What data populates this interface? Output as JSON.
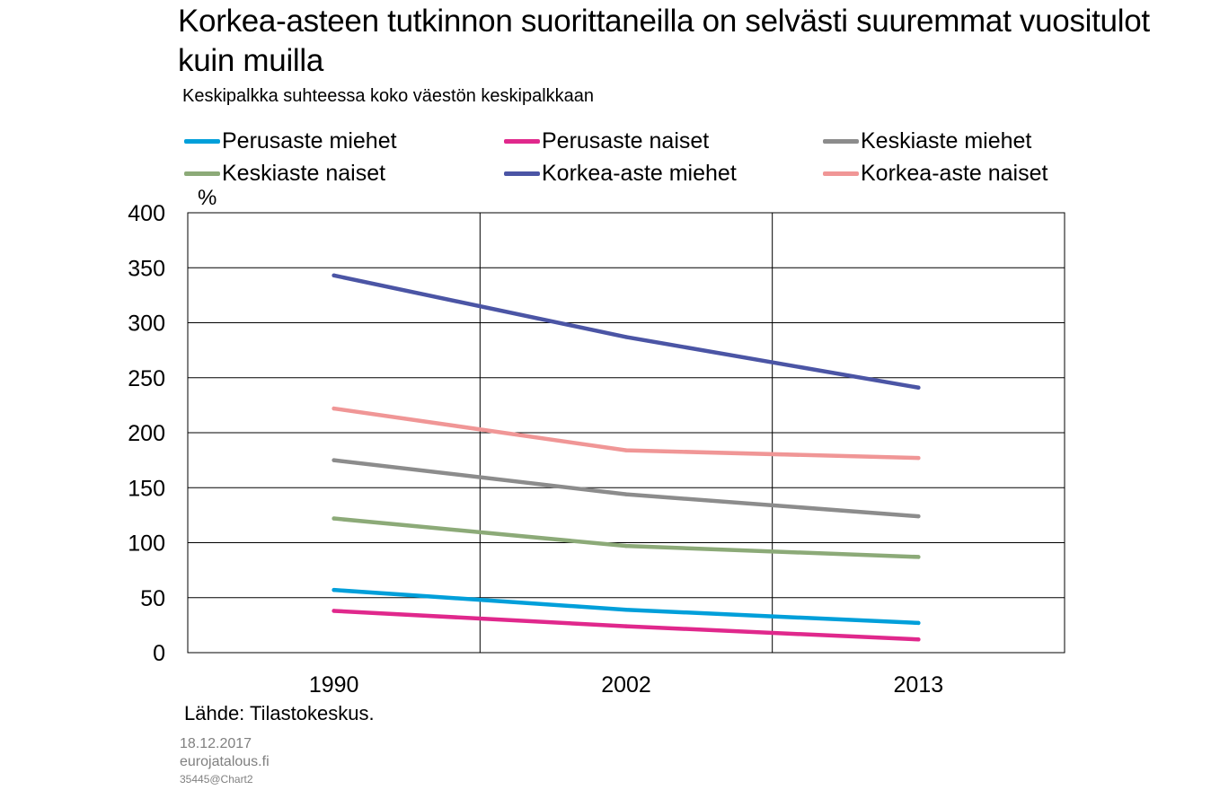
{
  "header": {
    "title": "Korkea-asteen tutkinnon suorittaneilla on selvästi suuremmat vuositulot kuin muilla",
    "subtitle": "Keskipalkka suhteessa koko väestön keskipalkkaan"
  },
  "legend": [
    {
      "label": "Perusaste miehet",
      "color": "#009FDA"
    },
    {
      "label": "Perusaste naiset",
      "color": "#E0288C"
    },
    {
      "label": "Keskiaste miehet",
      "color": "#8C8C8C"
    },
    {
      "label": "Keskiaste naiset",
      "color": "#8CAA78"
    },
    {
      "label": "Korkea-aste miehet",
      "color": "#4B55A5"
    },
    {
      "label": "Korkea-aste naiset",
      "color": "#F09696"
    }
  ],
  "unit_label": "%",
  "source": "Lähde: Tilastokeskus.",
  "footer": {
    "date": "18.12.2017",
    "site": "eurojatalous.fi",
    "id": "35445@Chart2"
  },
  "chart_data": {
    "type": "line",
    "title": "Korkea-asteen tutkinnon suorittaneilla on selvästi suuremmat vuositulot kuin muilla",
    "subtitle": "Keskipalkka suhteessa koko väestön keskipalkkaan",
    "ylabel": "%",
    "xlabel": "",
    "categories": [
      "1990",
      "2002",
      "2013"
    ],
    "ylim": [
      0,
      400
    ],
    "yticks": [
      0,
      50,
      100,
      150,
      200,
      250,
      300,
      350,
      400
    ],
    "grid": true,
    "legend_position": "top",
    "series": [
      {
        "name": "Perusaste miehet",
        "color": "#009FDA",
        "values": [
          57,
          39,
          27
        ]
      },
      {
        "name": "Perusaste naiset",
        "color": "#E0288C",
        "values": [
          38,
          24,
          12
        ]
      },
      {
        "name": "Keskiaste miehet",
        "color": "#8C8C8C",
        "values": [
          175,
          144,
          124
        ]
      },
      {
        "name": "Keskiaste naiset",
        "color": "#8CAA78",
        "values": [
          122,
          97,
          87
        ]
      },
      {
        "name": "Korkea-aste miehet",
        "color": "#4B55A5",
        "values": [
          343,
          287,
          241
        ]
      },
      {
        "name": "Korkea-aste naiset",
        "color": "#F09696",
        "values": [
          222,
          184,
          177
        ]
      }
    ]
  }
}
